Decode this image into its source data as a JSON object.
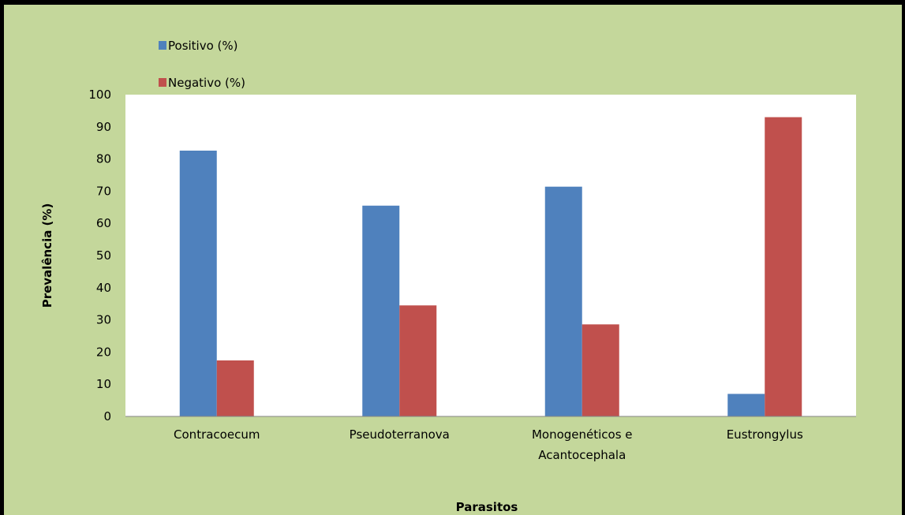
{
  "colors": {
    "chart_background": "#c4d79b",
    "plot_background": "#ffffff",
    "border": "#000000",
    "positivo": "#4f81bd",
    "negativo": "#c0504d"
  },
  "chart_data": {
    "type": "bar",
    "title": "",
    "xlabel": "Parasitos",
    "ylabel": "Prevalência (%)",
    "ylim": [
      0,
      100
    ],
    "yticks": [
      0,
      10,
      20,
      30,
      40,
      50,
      60,
      70,
      80,
      90,
      100
    ],
    "grid": false,
    "legend_position": "top-left",
    "categories": [
      [
        "Contracoecum"
      ],
      [
        "Pseudoterranova"
      ],
      [
        "Monogenéticos e",
        "Acantocephala"
      ],
      [
        "Eustrongylus"
      ]
    ],
    "series": [
      {
        "name": "Positivo (%)",
        "color": "#4f81bd",
        "values": [
          82.6,
          65.5,
          71.4,
          7
        ]
      },
      {
        "name": "Negativo (%)",
        "color": "#c0504d",
        "values": [
          17.4,
          34.5,
          28.6,
          93
        ]
      }
    ]
  }
}
